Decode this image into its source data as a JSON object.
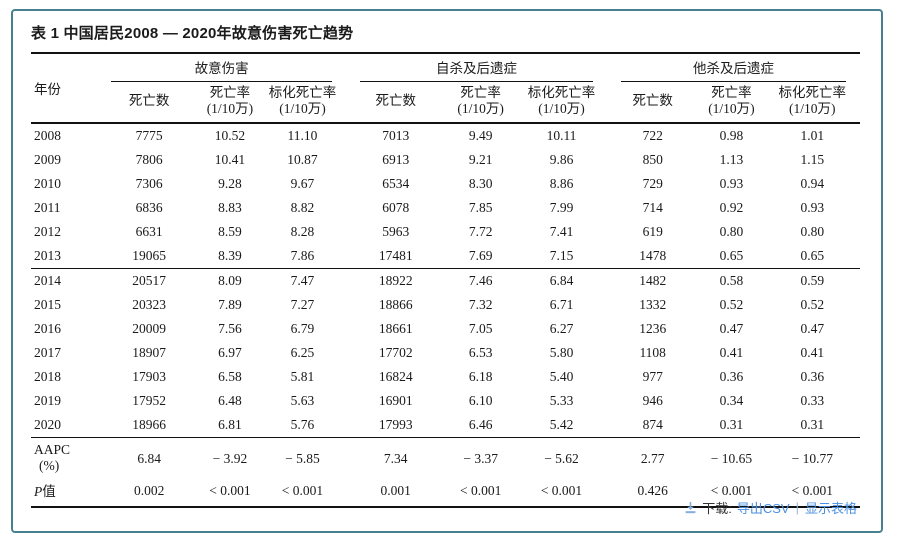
{
  "title": "表 1 中国居民2008 — 2020年故意伤害死亡趋势",
  "table": {
    "year_header": "年份",
    "groups": [
      {
        "label": "故意伤害"
      },
      {
        "label": "自杀及后遗症"
      },
      {
        "label": "他杀及后遗症"
      }
    ],
    "columns": {
      "deaths": "死亡数",
      "rate": [
        "死亡率",
        "(1/10万)"
      ],
      "std_rate": [
        "标化死亡率",
        "(1/10万)"
      ]
    },
    "rows": [
      {
        "year": "2008",
        "values": [
          "7775",
          "10.52",
          "11.10",
          "7013",
          "9.49",
          "10.11",
          "722",
          "0.98",
          "1.01"
        ]
      },
      {
        "year": "2009",
        "values": [
          "7806",
          "10.41",
          "10.87",
          "6913",
          "9.21",
          "9.86",
          "850",
          "1.13",
          "1.15"
        ]
      },
      {
        "year": "2010",
        "values": [
          "7306",
          "9.28",
          "9.67",
          "6534",
          "8.30",
          "8.86",
          "729",
          "0.93",
          "0.94"
        ]
      },
      {
        "year": "2011",
        "values": [
          "6836",
          "8.83",
          "8.82",
          "6078",
          "7.85",
          "7.99",
          "714",
          "0.92",
          "0.93"
        ]
      },
      {
        "year": "2012",
        "values": [
          "6631",
          "8.59",
          "8.28",
          "5963",
          "7.72",
          "7.41",
          "619",
          "0.80",
          "0.80"
        ]
      },
      {
        "year": "2013",
        "values": [
          "19065",
          "8.39",
          "7.86",
          "17481",
          "7.69",
          "7.15",
          "1478",
          "0.65",
          "0.65"
        ]
      },
      {
        "year": "2014",
        "values": [
          "20517",
          "8.09",
          "7.47",
          "18922",
          "7.46",
          "6.84",
          "1482",
          "0.58",
          "0.59"
        ]
      },
      {
        "year": "2015",
        "values": [
          "20323",
          "7.89",
          "7.27",
          "18866",
          "7.32",
          "6.71",
          "1332",
          "0.52",
          "0.52"
        ]
      },
      {
        "year": "2016",
        "values": [
          "20009",
          "7.56",
          "6.79",
          "18661",
          "7.05",
          "6.27",
          "1236",
          "0.47",
          "0.47"
        ]
      },
      {
        "year": "2017",
        "values": [
          "18907",
          "6.97",
          "6.25",
          "17702",
          "6.53",
          "5.80",
          "1108",
          "0.41",
          "0.41"
        ]
      },
      {
        "year": "2018",
        "values": [
          "17903",
          "6.58",
          "5.81",
          "16824",
          "6.18",
          "5.40",
          "977",
          "0.36",
          "0.36"
        ]
      },
      {
        "year": "2019",
        "values": [
          "17952",
          "6.48",
          "5.63",
          "16901",
          "6.10",
          "5.33",
          "946",
          "0.34",
          "0.33"
        ]
      },
      {
        "year": "2020",
        "values": [
          "18966",
          "6.81",
          "5.76",
          "17993",
          "6.46",
          "5.42",
          "874",
          "0.31",
          "0.31"
        ]
      }
    ],
    "aapc": {
      "label_line1": "AAPC",
      "label_line2": "(%)",
      "values": [
        "6.84",
        "− 3.92",
        "− 5.85",
        "7.34",
        "− 3.37",
        "− 5.62",
        "2.77",
        "− 10.65",
        "− 10.77"
      ]
    },
    "p": {
      "label_italic": "P",
      "label_suffix": "值",
      "values": [
        "0.002",
        "< 0.001",
        "< 0.001",
        "0.001",
        "< 0.001",
        "< 0.001",
        "0.426",
        "< 0.001",
        "< 0.001"
      ]
    }
  },
  "footer": {
    "download_label": "下载:",
    "csv_link": "导出CSV",
    "separator": "|",
    "table_link": "显示表格",
    "link_color": "#4a90e2",
    "icon_color": "#85aede"
  }
}
